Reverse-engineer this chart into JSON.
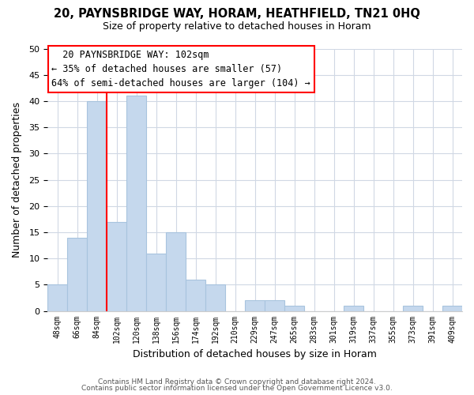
{
  "title": "20, PAYNSBRIDGE WAY, HORAM, HEATHFIELD, TN21 0HQ",
  "subtitle": "Size of property relative to detached houses in Horam",
  "xlabel": "Distribution of detached houses by size in Horam",
  "ylabel": "Number of detached properties",
  "bar_labels": [
    "48sqm",
    "66sqm",
    "84sqm",
    "102sqm",
    "120sqm",
    "138sqm",
    "156sqm",
    "174sqm",
    "192sqm",
    "210sqm",
    "229sqm",
    "247sqm",
    "265sqm",
    "283sqm",
    "301sqm",
    "319sqm",
    "337sqm",
    "355sqm",
    "373sqm",
    "391sqm",
    "409sqm"
  ],
  "bar_values": [
    5,
    14,
    40,
    17,
    41,
    11,
    15,
    6,
    5,
    0,
    2,
    2,
    1,
    0,
    0,
    1,
    0,
    0,
    1,
    0,
    1
  ],
  "bar_color": "#c5d8ed",
  "bar_edge_color": "#a8c4de",
  "vline_x_index": 3,
  "vline_color": "red",
  "ylim": [
    0,
    50
  ],
  "yticks": [
    0,
    5,
    10,
    15,
    20,
    25,
    30,
    35,
    40,
    45,
    50
  ],
  "annotation_text_line1": "20 PAYNSBRIDGE WAY: 102sqm",
  "annotation_text_line2": "← 35% of detached houses are smaller (57)",
  "annotation_text_line3": "64% of semi-detached houses are larger (104) →",
  "footer_line1": "Contains HM Land Registry data © Crown copyright and database right 2024.",
  "footer_line2": "Contains public sector information licensed under the Open Government Licence v3.0.",
  "background_color": "#ffffff",
  "grid_color": "#d0d8e4"
}
